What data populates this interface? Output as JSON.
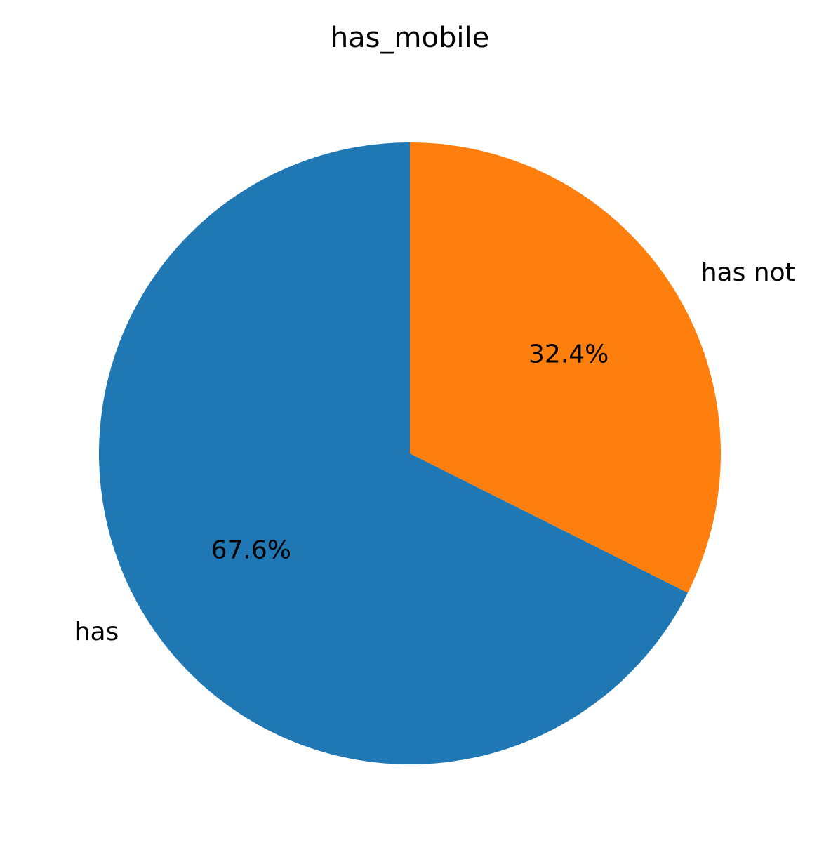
{
  "chart_data": {
    "type": "pie",
    "title": "has_mobile",
    "categories": [
      "has",
      "has not"
    ],
    "values": [
      67.6,
      32.4
    ],
    "value_labels": [
      "67.6%",
      "32.4%"
    ],
    "colors": [
      "#1f77b4",
      "#ff7f0e"
    ],
    "start_angle_deg": 90,
    "direction": "counterclockwise"
  }
}
